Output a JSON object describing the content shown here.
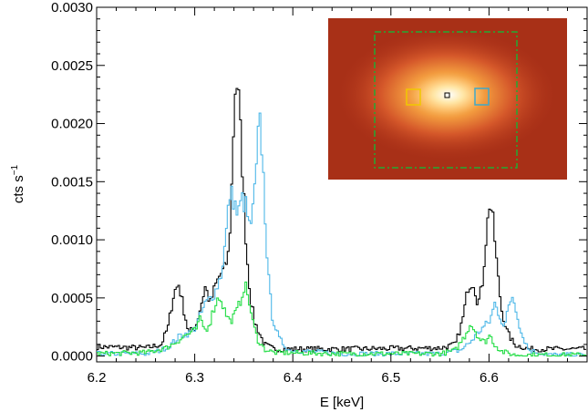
{
  "chart_data": {
    "type": "line",
    "xlabel": "E [keV]",
    "ylabel": "cts s",
    "ylabel_sup": "−1",
    "xlim": [
      6.2,
      6.7
    ],
    "ylim": [
      -5e-05,
      0.003
    ],
    "x_ticks": [
      "6.2",
      "6.3",
      "6.4",
      "6.5",
      "6.6"
    ],
    "y_ticks": [
      "0.0000",
      "0.0005",
      "0.0010",
      "0.0015",
      "0.0020",
      "0.0025",
      "0.0030"
    ],
    "series": [
      {
        "color": "#000000",
        "points": [
          [
            6.2,
            8e-05
          ],
          [
            6.25,
            7e-05
          ],
          [
            6.265,
            0.0001
          ],
          [
            6.272,
            0.00025
          ],
          [
            6.278,
            0.00055
          ],
          [
            6.283,
            0.00062
          ],
          [
            6.288,
            0.0004
          ],
          [
            6.293,
            0.0002
          ],
          [
            6.3,
            0.00025
          ],
          [
            6.305,
            0.00042
          ],
          [
            6.31,
            0.0006
          ],
          [
            6.315,
            0.00045
          ],
          [
            6.32,
            0.0006
          ],
          [
            6.325,
            0.0007
          ],
          [
            6.33,
            0.00075
          ],
          [
            6.334,
            0.0009
          ],
          [
            6.337,
            0.0015
          ],
          [
            6.34,
            0.0023
          ],
          [
            6.343,
            0.00235
          ],
          [
            6.346,
            0.0019
          ],
          [
            6.349,
            0.0014
          ],
          [
            6.352,
            0.0009
          ],
          [
            6.356,
            0.0005
          ],
          [
            6.36,
            0.0003
          ],
          [
            6.37,
            0.0001
          ],
          [
            6.38,
            6e-05
          ],
          [
            6.45,
            6e-05
          ],
          [
            6.55,
            7e-05
          ],
          [
            6.565,
            0.0001
          ],
          [
            6.572,
            0.0003
          ],
          [
            6.578,
            0.0006
          ],
          [
            6.583,
            0.00065
          ],
          [
            6.588,
            0.00045
          ],
          [
            6.592,
            0.0006
          ],
          [
            6.596,
            0.001
          ],
          [
            6.6,
            0.00135
          ],
          [
            6.604,
            0.0011
          ],
          [
            6.608,
            0.0007
          ],
          [
            6.612,
            0.0004
          ],
          [
            6.618,
            0.0002
          ],
          [
            6.625,
            0.0001
          ],
          [
            6.64,
            6e-05
          ],
          [
            6.7,
            6e-05
          ]
        ]
      },
      {
        "color": "#4fb8e8",
        "points": [
          [
            6.2,
            2e-05
          ],
          [
            6.25,
            2e-05
          ],
          [
            6.265,
            5e-05
          ],
          [
            6.275,
            0.0001
          ],
          [
            6.285,
            0.00018
          ],
          [
            6.295,
            0.0002
          ],
          [
            6.3,
            0.00025
          ],
          [
            6.305,
            0.00035
          ],
          [
            6.31,
            0.00045
          ],
          [
            6.315,
            0.0005
          ],
          [
            6.32,
            0.00055
          ],
          [
            6.326,
            0.0007
          ],
          [
            6.33,
            0.00095
          ],
          [
            6.335,
            0.0014
          ],
          [
            6.339,
            0.00135
          ],
          [
            6.343,
            0.0012
          ],
          [
            6.347,
            0.00135
          ],
          [
            6.351,
            0.0013
          ],
          [
            6.355,
            0.0011
          ],
          [
            6.358,
            0.0012
          ],
          [
            6.362,
            0.0016
          ],
          [
            6.365,
            0.00205
          ],
          [
            6.368,
            0.00175
          ],
          [
            6.371,
            0.0012
          ],
          [
            6.374,
            0.0007
          ],
          [
            6.378,
            0.00035
          ],
          [
            6.385,
            0.00015
          ],
          [
            6.395,
            5e-05
          ],
          [
            6.45,
            2e-05
          ],
          [
            6.55,
            2e-05
          ],
          [
            6.57,
            5e-05
          ],
          [
            6.58,
            0.00012
          ],
          [
            6.59,
            0.00022
          ],
          [
            6.6,
            0.0003
          ],
          [
            6.605,
            0.00045
          ],
          [
            6.61,
            0.00035
          ],
          [
            6.615,
            0.00025
          ],
          [
            6.62,
            0.00045
          ],
          [
            6.623,
            0.00052
          ],
          [
            6.627,
            0.0004
          ],
          [
            6.632,
            0.0002
          ],
          [
            6.64,
            5e-05
          ],
          [
            6.66,
            1e-05
          ],
          [
            6.7,
            1e-05
          ]
        ]
      },
      {
        "color": "#22dd44",
        "points": [
          [
            6.2,
            2e-05
          ],
          [
            6.25,
            3e-05
          ],
          [
            6.27,
            7e-05
          ],
          [
            6.28,
            0.00012
          ],
          [
            6.29,
            0.00018
          ],
          [
            6.3,
            0.00022
          ],
          [
            6.305,
            0.00032
          ],
          [
            6.31,
            0.00022
          ],
          [
            6.315,
            0.0003
          ],
          [
            6.32,
            0.00045
          ],
          [
            6.325,
            0.00052
          ],
          [
            6.33,
            0.00038
          ],
          [
            6.335,
            0.0003
          ],
          [
            6.34,
            0.00035
          ],
          [
            6.345,
            0.00045
          ],
          [
            6.35,
            0.00062
          ],
          [
            6.354,
            0.0005
          ],
          [
            6.358,
            0.0003
          ],
          [
            6.363,
            0.00015
          ],
          [
            6.37,
            6e-05
          ],
          [
            6.38,
            3e-05
          ],
          [
            6.45,
            2e-05
          ],
          [
            6.55,
            2e-05
          ],
          [
            6.565,
            5e-05
          ],
          [
            6.575,
            0.00018
          ],
          [
            6.58,
            0.00028
          ],
          [
            6.585,
            0.00022
          ],
          [
            6.59,
            0.00014
          ],
          [
            6.595,
            0.00012
          ],
          [
            6.6,
            0.00018
          ],
          [
            6.605,
            0.0001
          ],
          [
            6.612,
            4e-05
          ],
          [
            6.625,
            1e-05
          ],
          [
            6.7,
            1e-05
          ]
        ]
      }
    ],
    "grid": false,
    "legend": "none"
  },
  "inset": {
    "description_free": true,
    "background": "#b0331a",
    "glow_color": "#ffe9b0",
    "regions": [
      {
        "shape": "dash-dot-box",
        "color": "#22aa33"
      },
      {
        "shape": "box",
        "color": "#f0c800"
      },
      {
        "shape": "box",
        "color": "#3fa8c8"
      },
      {
        "shape": "box",
        "color": "#000000"
      }
    ]
  }
}
